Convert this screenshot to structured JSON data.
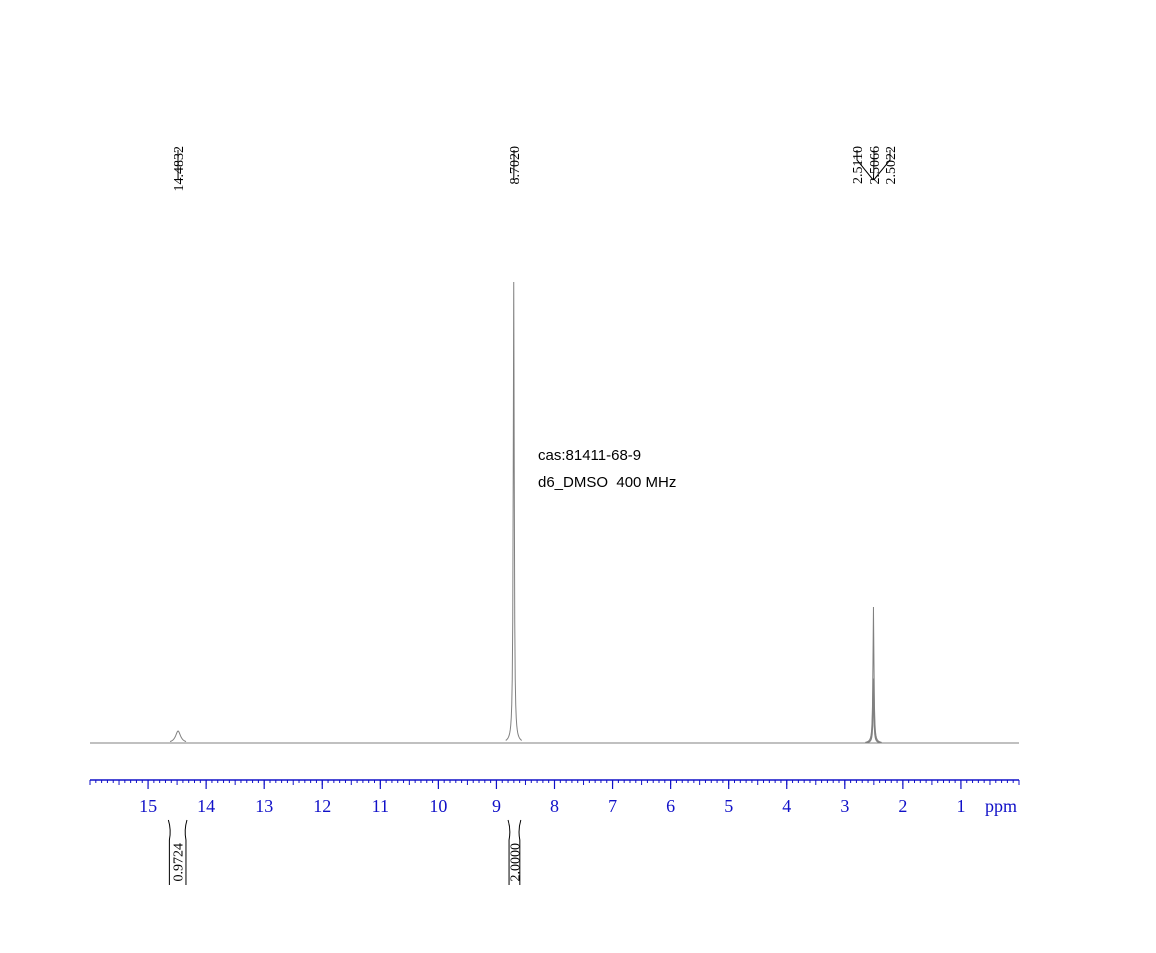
{
  "chart_data": {
    "type": "nmr",
    "annotations": [
      "cas:81411-68-9",
      "d6_DMSO  400 MHz"
    ],
    "x_label": "ppm",
    "xlim": [
      16,
      0
    ],
    "xticks": [
      15,
      14,
      13,
      12,
      11,
      10,
      9,
      8,
      7,
      6,
      5,
      4,
      3,
      2,
      1
    ],
    "peaks": {
      "x": [
        14.4832,
        8.702,
        2.511,
        2.5066,
        2.5022
      ],
      "x_labels": [
        "14.4832",
        "8.7020",
        "2.5110",
        "2.5066",
        "2.5022"
      ],
      "values": [
        2.6,
        100,
        14,
        29.5,
        14
      ]
    },
    "integrals": {
      "ranges": [
        [
          14.65,
          14.33
        ],
        [
          8.8,
          8.58
        ]
      ],
      "values": [
        0.9724,
        2
      ],
      "value_labels": [
        "0.9724",
        "2.0000"
      ]
    },
    "axis_color": "#1010c8",
    "line_color": "#808080"
  }
}
